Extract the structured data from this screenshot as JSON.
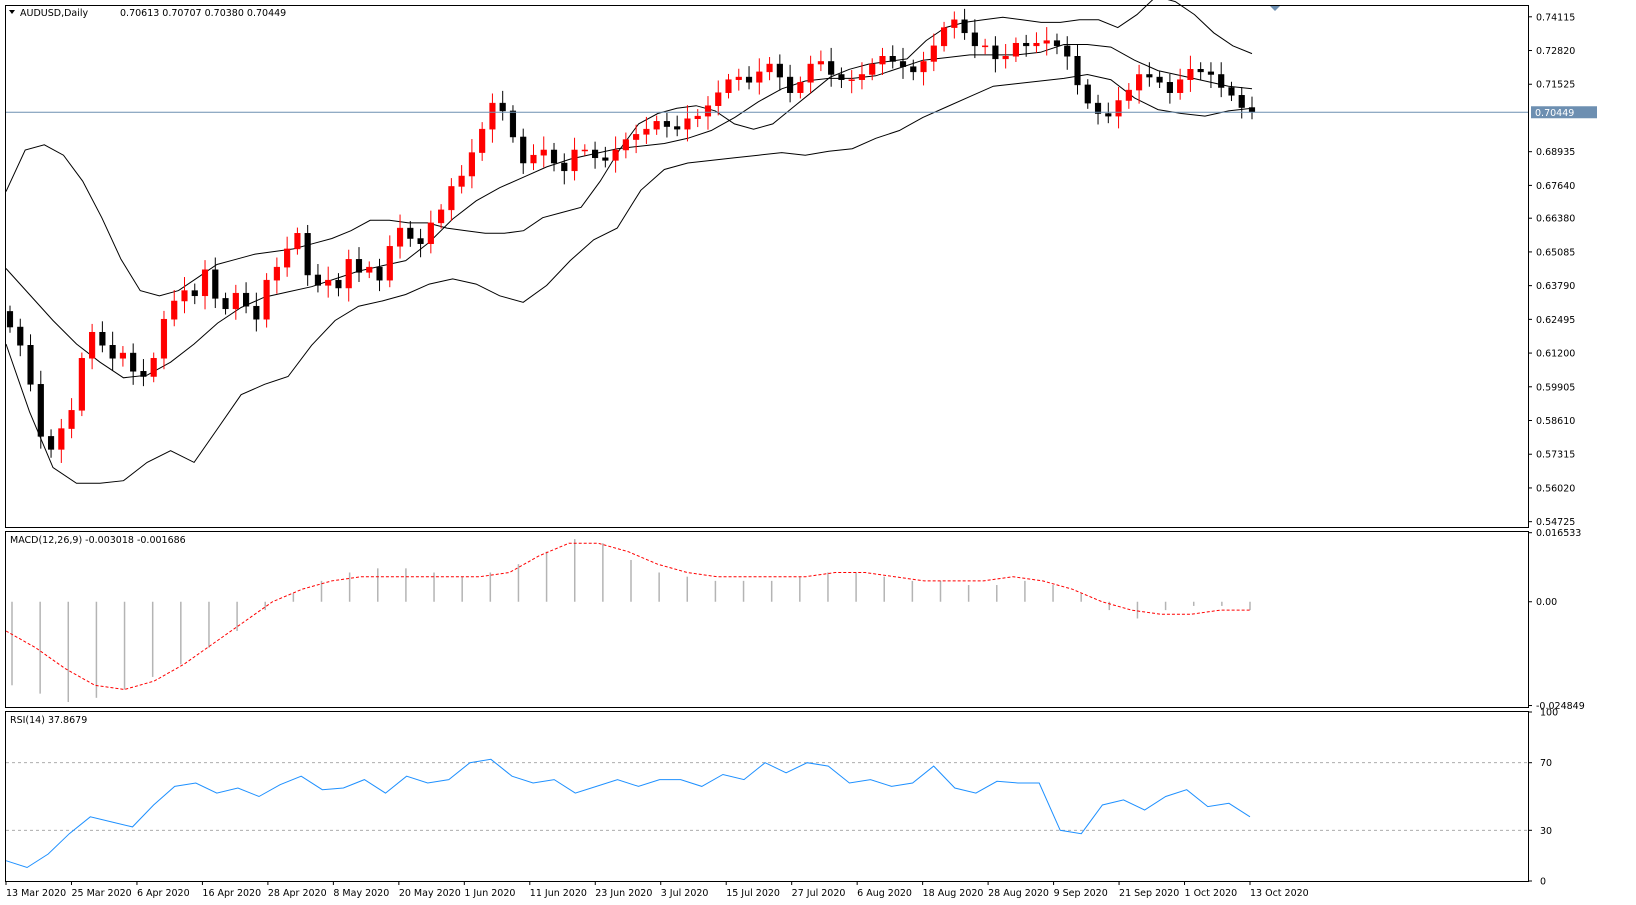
{
  "window": {
    "symbol": "AUDUSD",
    "timeframe": "Daily",
    "title": "AUDUSD,Daily",
    "ohlc_label": "0.70613 0.70707 0.70380 0.70449"
  },
  "colors": {
    "bull_candle": "#ff0000",
    "bear_candle": "#000000",
    "bollinger": "#000000",
    "price_line": "#6d8fb1",
    "price_tag_bg": "#6d8fb1",
    "macd_hist": "#b4b4b4",
    "macd_signal": "#ff0000",
    "rsi": "#1e90ff",
    "level_lines": "#a0a0a0"
  },
  "chart_data": [
    {
      "type": "candlestick",
      "name": "price",
      "title": "AUDUSD,Daily",
      "y_ticks": [
        "0.74115",
        "0.72820",
        "0.71525",
        "0.70449",
        "0.68935",
        "0.67640",
        "0.66380",
        "0.65085",
        "0.63790",
        "0.62495",
        "0.61200",
        "0.59905",
        "0.58610",
        "0.57315",
        "0.56020",
        "0.54725"
      ],
      "current_price": "0.70449",
      "ylim": [
        0.5452,
        0.7453
      ],
      "overlays": [
        "Bollinger Bands (upper, middle, lower)"
      ],
      "x_ticks": [
        "13 Mar 2020",
        "25 Mar 2020",
        "6 Apr 2020",
        "16 Apr 2020",
        "28 Apr 2020",
        "8 May 2020",
        "20 May 2020",
        "1 Jun 2020",
        "11 Jun 2020",
        "23 Jun 2020",
        "3 Jul 2020",
        "15 Jul 2020",
        "27 Jul 2020",
        "6 Aug 2020",
        "18 Aug 2020",
        "28 Aug 2020",
        "9 Sep 2020",
        "21 Sep 2020",
        "1 Oct 2020",
        "13 Oct 2020"
      ],
      "close": [
        0.622,
        0.615,
        0.6,
        0.58,
        0.575,
        0.583,
        0.59,
        0.61,
        0.62,
        0.615,
        0.61,
        0.612,
        0.605,
        0.603,
        0.61,
        0.625,
        0.632,
        0.636,
        0.634,
        0.644,
        0.633,
        0.629,
        0.635,
        0.63,
        0.625,
        0.64,
        0.645,
        0.652,
        0.658,
        0.642,
        0.638,
        0.64,
        0.637,
        0.648,
        0.643,
        0.645,
        0.64,
        0.653,
        0.66,
        0.656,
        0.654,
        0.662,
        0.667,
        0.676,
        0.68,
        0.689,
        0.698,
        0.708,
        0.705,
        0.695,
        0.685,
        0.688,
        0.69,
        0.685,
        0.682,
        0.69,
        0.69,
        0.687,
        0.686,
        0.69,
        0.694,
        0.696,
        0.698,
        0.701,
        0.699,
        0.698,
        0.702,
        0.703,
        0.707,
        0.712,
        0.717,
        0.718,
        0.716,
        0.72,
        0.723,
        0.718,
        0.712,
        0.716,
        0.723,
        0.724,
        0.719,
        0.717,
        0.717,
        0.719,
        0.723,
        0.726,
        0.724,
        0.722,
        0.72,
        0.724,
        0.73,
        0.737,
        0.74,
        0.735,
        0.73,
        0.73,
        0.725,
        0.726,
        0.731,
        0.73,
        0.731,
        0.732,
        0.73,
        0.726,
        0.715,
        0.708,
        0.704,
        0.703,
        0.709,
        0.713,
        0.719,
        0.718,
        0.716,
        0.712,
        0.717,
        0.721,
        0.72,
        0.719,
        0.714,
        0.711,
        0.7063,
        0.7045
      ],
      "bollinger_upper": [
        0.674,
        0.69,
        0.692,
        0.688,
        0.678,
        0.664,
        0.648,
        0.636,
        0.634,
        0.636,
        0.641,
        0.646,
        0.648,
        0.65,
        0.651,
        0.652,
        0.654,
        0.656,
        0.659,
        0.663,
        0.663,
        0.662,
        0.662,
        0.66,
        0.659,
        0.658,
        0.658,
        0.659,
        0.664,
        0.666,
        0.668,
        0.678,
        0.69,
        0.7,
        0.704,
        0.706,
        0.707,
        0.705,
        0.7,
        0.698,
        0.7,
        0.706,
        0.712,
        0.718,
        0.721,
        0.723,
        0.724,
        0.725,
        0.732,
        0.737,
        0.739,
        0.74,
        0.741,
        0.74,
        0.739,
        0.739,
        0.74,
        0.74,
        0.737,
        0.742,
        0.749,
        0.747,
        0.742,
        0.735,
        0.73,
        0.727
      ],
      "bollinger_middle": [
        0.6445,
        0.6345,
        0.6245,
        0.6155,
        0.6085,
        0.6025,
        0.6035,
        0.6085,
        0.6155,
        0.6235,
        0.6295,
        0.6335,
        0.6355,
        0.6375,
        0.6405,
        0.6435,
        0.6455,
        0.6475,
        0.6545,
        0.6635,
        0.6705,
        0.6755,
        0.6795,
        0.6835,
        0.6865,
        0.6885,
        0.6905,
        0.6915,
        0.6925,
        0.6945,
        0.6975,
        0.7025,
        0.7085,
        0.7135,
        0.7165,
        0.7175,
        0.7175,
        0.7185,
        0.7215,
        0.7245,
        0.7255,
        0.7265,
        0.7265,
        0.7265,
        0.7275,
        0.7305,
        0.7305,
        0.7295,
        0.7245,
        0.7205,
        0.7185,
        0.7165,
        0.7145,
        0.7135
      ],
      "bollinger_lower": [
        0.6155,
        0.5895,
        0.568,
        0.562,
        0.562,
        0.563,
        0.57,
        0.5745,
        0.57,
        0.583,
        0.596,
        0.6,
        0.603,
        0.615,
        0.6245,
        0.63,
        0.632,
        0.6345,
        0.6385,
        0.6405,
        0.6385,
        0.634,
        0.6315,
        0.638,
        0.6475,
        0.6555,
        0.66,
        0.6745,
        0.6825,
        0.685,
        0.686,
        0.687,
        0.688,
        0.689,
        0.688,
        0.6895,
        0.6905,
        0.6945,
        0.6975,
        0.7025,
        0.7065,
        0.7105,
        0.7145,
        0.7155,
        0.7165,
        0.7175,
        0.719,
        0.717,
        0.71,
        0.7055,
        0.704,
        0.703,
        0.705,
        0.706
      ]
    },
    {
      "type": "bar+line",
      "name": "MACD",
      "label": "MACD(12,26,9) -0.003018 -0.001686",
      "y_ticks": [
        "0.016533",
        "0.00",
        "-0.024849"
      ],
      "ylim": [
        -0.0252,
        0.0167
      ],
      "histogram": [
        -0.02,
        -0.022,
        -0.024,
        -0.023,
        -0.021,
        -0.018,
        -0.015,
        -0.011,
        -0.007,
        -0.002,
        0.002,
        0.005,
        0.007,
        0.008,
        0.008,
        0.007,
        0.006,
        0.007,
        0.009,
        0.012,
        0.015,
        0.014,
        0.01,
        0.007,
        0.006,
        0.005,
        0.005,
        0.005,
        0.006,
        0.007,
        0.007,
        0.006,
        0.005,
        0.005,
        0.004,
        0.004,
        0.005,
        0.004,
        0.002,
        -0.002,
        -0.004,
        -0.002,
        -0.001,
        -0.001,
        -0.002
      ],
      "signal": [
        -0.007,
        -0.011,
        -0.016,
        -0.02,
        -0.021,
        -0.019,
        -0.015,
        -0.01,
        -0.005,
        0.0,
        0.003,
        0.005,
        0.006,
        0.006,
        0.006,
        0.006,
        0.006,
        0.007,
        0.011,
        0.014,
        0.014,
        0.012,
        0.009,
        0.007,
        0.006,
        0.006,
        0.006,
        0.006,
        0.007,
        0.007,
        0.006,
        0.005,
        0.005,
        0.005,
        0.006,
        0.005,
        0.003,
        0.0,
        -0.002,
        -0.003,
        -0.003,
        -0.002,
        -0.002
      ]
    },
    {
      "type": "line",
      "name": "RSI",
      "label": "RSI(14) 37.8679",
      "y_ticks": [
        "100",
        "70",
        "30",
        "0"
      ],
      "levels": [
        70,
        30
      ],
      "ylim": [
        0,
        100
      ],
      "values": [
        12,
        8,
        16,
        28,
        38,
        35,
        32,
        45,
        56,
        58,
        52,
        55,
        50,
        57,
        62,
        54,
        55,
        60,
        52,
        62,
        58,
        60,
        70,
        72,
        62,
        58,
        60,
        52,
        56,
        60,
        56,
        60,
        60,
        56,
        63,
        60,
        70,
        64,
        70,
        68,
        58,
        60,
        56,
        58,
        68,
        55,
        52,
        59,
        58,
        58,
        30,
        28,
        45,
        48,
        42,
        50,
        54,
        44,
        46,
        38
      ]
    }
  ]
}
